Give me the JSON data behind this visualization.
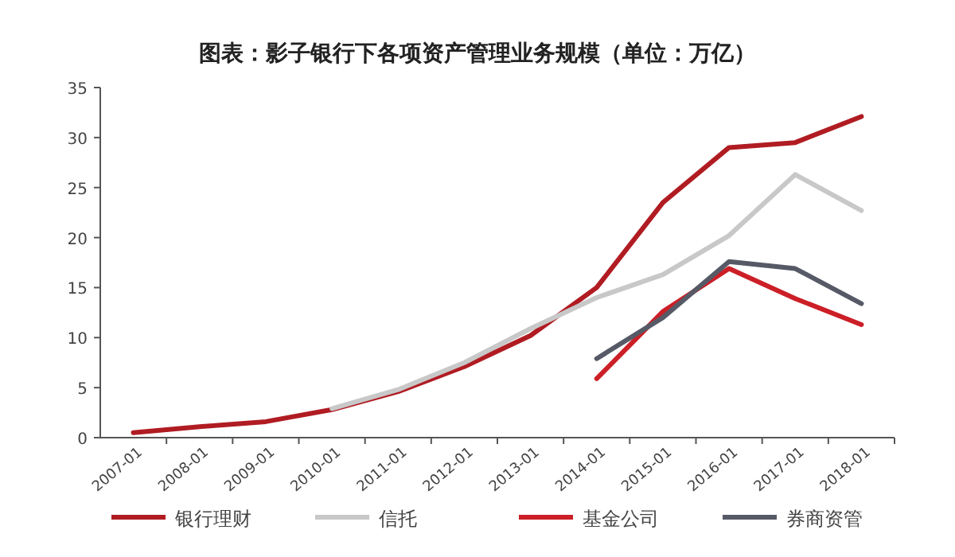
{
  "chart_data": {
    "type": "line",
    "title": "图表：影子银行下各项资产管理业务规模（单位：万亿）",
    "categories": [
      "2007-01",
      "2008-01",
      "2009-01",
      "2010-01",
      "2011-01",
      "2012-01",
      "2013-01",
      "2014-01",
      "2015-01",
      "2016-01",
      "2017-01",
      "2018-01"
    ],
    "series": [
      {
        "name": "银行理财",
        "color": "#b01c22",
        "values": [
          0.5,
          1.1,
          1.6,
          2.8,
          4.6,
          7.1,
          10.2,
          15.0,
          23.5,
          29.0,
          29.5,
          32.1
        ]
      },
      {
        "name": "信托",
        "color": "#c8c8c8",
        "values": [
          null,
          null,
          null,
          2.9,
          4.8,
          7.5,
          10.9,
          14.0,
          16.3,
          20.2,
          26.3,
          22.7
        ]
      },
      {
        "name": "基金公司",
        "color": "#cc1f27",
        "values": [
          null,
          null,
          null,
          null,
          null,
          null,
          null,
          5.9,
          12.6,
          16.9,
          13.9,
          11.3
        ]
      },
      {
        "name": "券商资管",
        "color": "#565a66",
        "values": [
          null,
          null,
          null,
          null,
          null,
          null,
          null,
          7.9,
          12.0,
          17.6,
          16.9,
          13.4
        ]
      }
    ],
    "ylim": [
      0,
      35
    ],
    "yticks": [
      0,
      5,
      10,
      15,
      20,
      25,
      30,
      35
    ],
    "legend": "bottom",
    "grid": false
  }
}
